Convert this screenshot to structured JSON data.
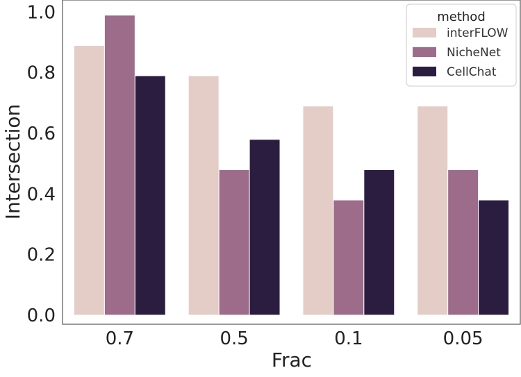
{
  "chart_data": {
    "type": "bar",
    "categories": [
      "0.7",
      "0.5",
      "0.1",
      "0.05"
    ],
    "series": [
      {
        "name": "interFLOW",
        "values": [
          0.89,
          0.79,
          0.69,
          0.69
        ],
        "color": "#e3cdc6"
      },
      {
        "name": "NicheNet",
        "values": [
          0.99,
          0.48,
          0.38,
          0.48
        ],
        "color": "#9d6c8b"
      },
      {
        "name": "CellChat",
        "values": [
          0.79,
          0.58,
          0.48,
          0.38
        ],
        "color": "#2b1d40"
      }
    ],
    "xlabel": "Frac",
    "ylabel": "Intersection",
    "ylim": [
      -0.03,
      1.04
    ],
    "yticks": [
      "0.0",
      "0.2",
      "0.4",
      "0.6",
      "0.8",
      "1.0"
    ],
    "legend": {
      "title": "method",
      "position": "top-right"
    },
    "grid": false
  }
}
